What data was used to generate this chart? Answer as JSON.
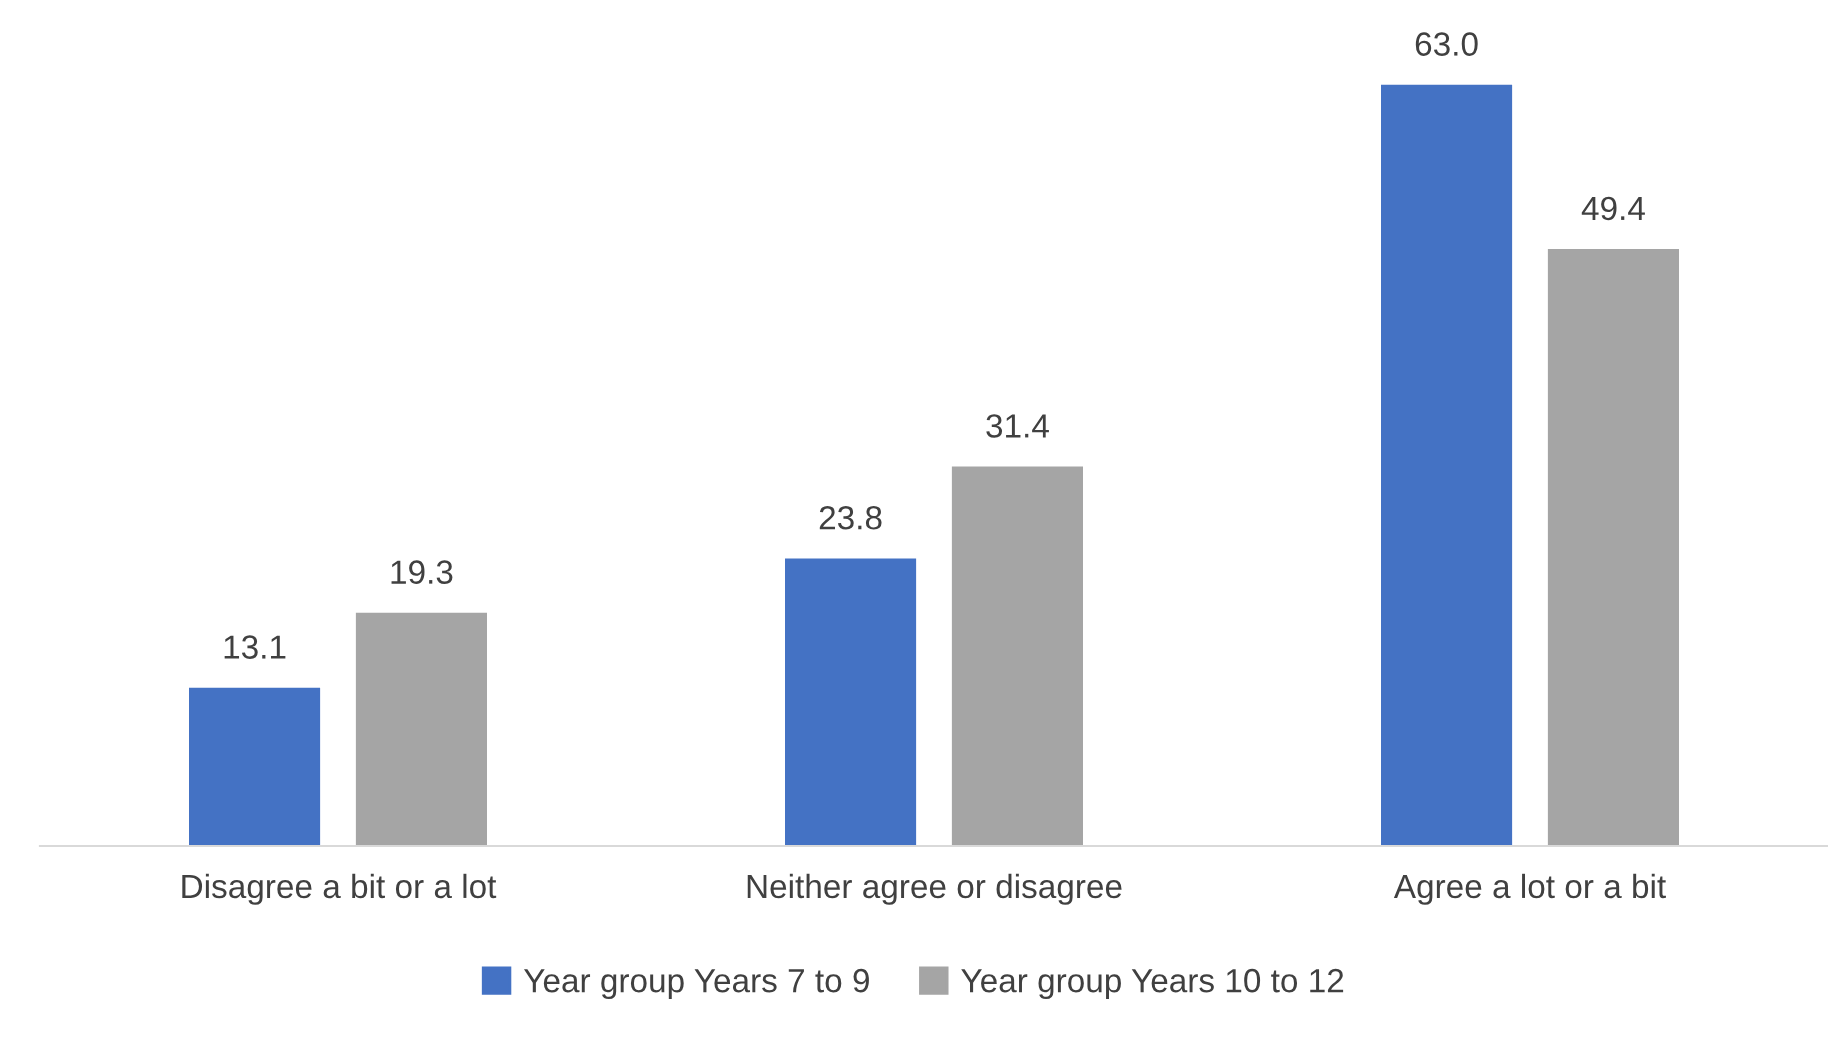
{
  "chart_data": {
    "type": "bar",
    "categories": [
      "Disagree a bit or a lot",
      "Neither agree or disagree",
      "Agree a lot or a bit"
    ],
    "series": [
      {
        "name": "Year group Years 7 to 9",
        "color": "#4472c4",
        "values": [
          13.1,
          23.8,
          63.0
        ],
        "value_labels": [
          "13.1",
          "23.8",
          "63.0"
        ]
      },
      {
        "name": "Year group Years 10 to 12",
        "color": "#a5a5a5",
        "values": [
          19.3,
          31.4,
          49.4
        ],
        "value_labels": [
          "19.3",
          "31.4",
          "49.4"
        ]
      }
    ],
    "legend": "bottom"
  }
}
